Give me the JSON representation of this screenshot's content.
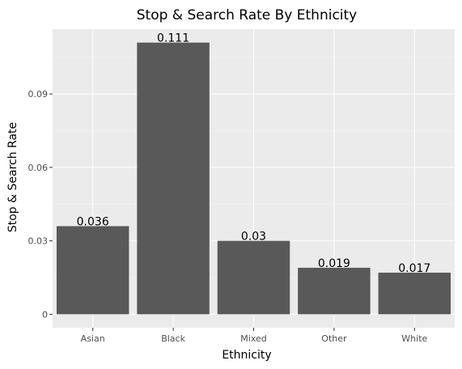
{
  "chart_data": {
    "type": "bar",
    "title": "Stop & Search Rate By Ethnicity",
    "xlabel": "Ethnicity",
    "ylabel": "Stop & Search Rate",
    "categories": [
      "Asian",
      "Black",
      "Mixed",
      "Other",
      "White"
    ],
    "values": [
      0.036,
      0.111,
      0.03,
      0.019,
      0.017
    ],
    "data_labels": [
      "0.036",
      "0.111",
      "0.03",
      "0.019",
      "0.017"
    ],
    "y_ticks": [
      0,
      0.03,
      0.06,
      0.09
    ],
    "y_tick_labels": [
      "0",
      "0.03",
      "0.06",
      "0.09"
    ],
    "ylim": [
      -0.0055,
      0.1165
    ],
    "grid": true,
    "legend": "none",
    "colors": {
      "panel_background": "#ebebeb",
      "grid_major": "#ffffff",
      "grid_minor": "#f5f5f5",
      "bar_fill": "#595959",
      "tick_mark": "#333333",
      "tick_text": "#4d4d4d",
      "text": "#000000"
    }
  }
}
